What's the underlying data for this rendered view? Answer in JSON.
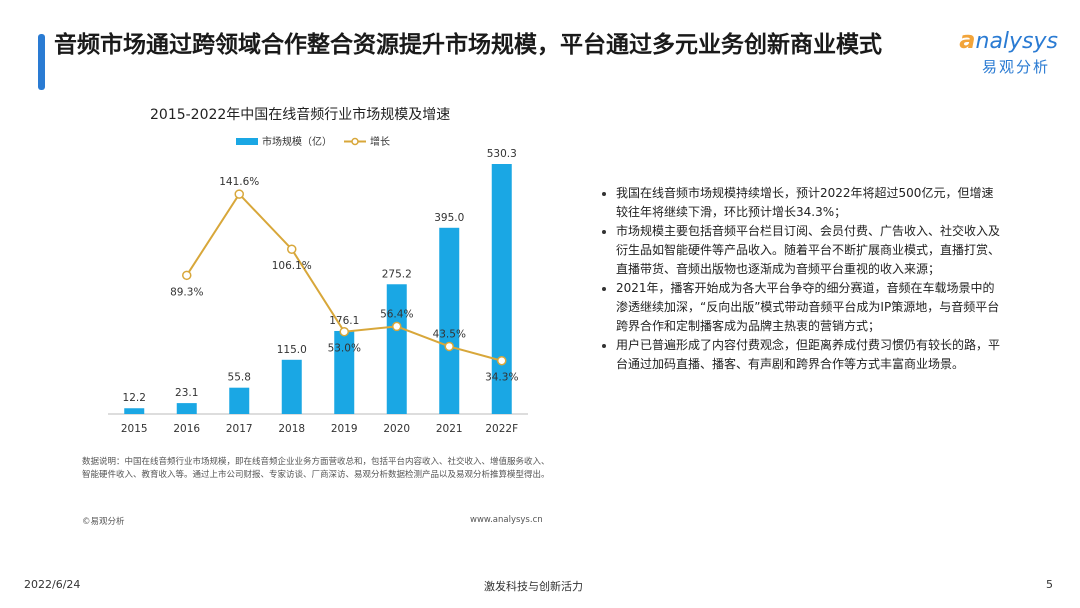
{
  "header": {
    "title": "音频市场通过跨领域合作整合资源提升市场规模，平台通过多元业务创新商业模式"
  },
  "logo": {
    "brand_first_letter": "a",
    "brand_rest": "nalysys",
    "brand_cn": "易观分析"
  },
  "chart_data": {
    "type": "bar",
    "title": "2015-2022年中国在线音频行业市场规模及增速",
    "categories": [
      "2015",
      "2016",
      "2017",
      "2018",
      "2019",
      "2020",
      "2021",
      "2022F"
    ],
    "series": [
      {
        "name": "市场规模（亿）",
        "kind": "bar",
        "values": [
          12.2,
          23.1,
          55.8,
          115.0,
          176.1,
          275.2,
          395.0,
          530.3
        ],
        "labels": [
          "12.2",
          "23.1",
          "55.8",
          "115.0",
          "176.1",
          "275.2",
          "395.0",
          "530.3"
        ]
      },
      {
        "name": "增长",
        "kind": "line",
        "values": [
          null,
          89.3,
          141.6,
          106.1,
          53.0,
          56.4,
          43.5,
          34.3
        ],
        "labels": [
          "",
          "89.3%",
          "141.6%",
          "106.1%",
          "53.0%",
          "56.4%",
          "43.5%",
          "34.3%"
        ]
      }
    ],
    "ylim_bar": [
      0,
      560
    ],
    "ylim_line": [
      0,
      170
    ],
    "legend": "top-left",
    "grid": false,
    "colors": {
      "bar": "#1aa7e4",
      "line": "#d8a73a"
    }
  },
  "note": {
    "text": "数据说明：中国在线音频行业市场规模，即在线音频企业业务方面营收总和，包括平台内容收入、社交收入、增值服务收入、智能硬件收入、教育收入等。通过上市公司财报、专家访谈、厂商深访、易观分析数据检测产品以及易观分析推算模型得出。",
    "source_left": "©易观分析",
    "source_right": "www.analysys.cn"
  },
  "bullets": [
    "我国在线音频市场规模持续增长，预计2022年将超过500亿元，但增速较往年将继续下滑，环比预计增长34.3%；",
    "市场规模主要包括音频平台栏目订阅、会员付费、广告收入、社交收入及衍生品如智能硬件等产品收入。随着平台不断扩展商业模式，直播打赏、直播带货、音频出版物也逐渐成为音频平台重视的收入来源；",
    "2021年，播客开始成为各大平台争夺的细分赛道，音频在车载场景中的渗透继续加深，“反向出版”模式带动音频平台成为IP策源地，与音频平台跨界合作和定制播客成为品牌主热衷的营销方式；",
    "用户已普遍形成了内容付费观念，但距离养成付费习惯仍有较长的路，平台通过加码直播、播客、有声剧和跨界合作等方式丰富商业场景。"
  ],
  "footer": {
    "date": "2022/6/24",
    "slogan": "激发科技与创新活力",
    "page": "5"
  }
}
